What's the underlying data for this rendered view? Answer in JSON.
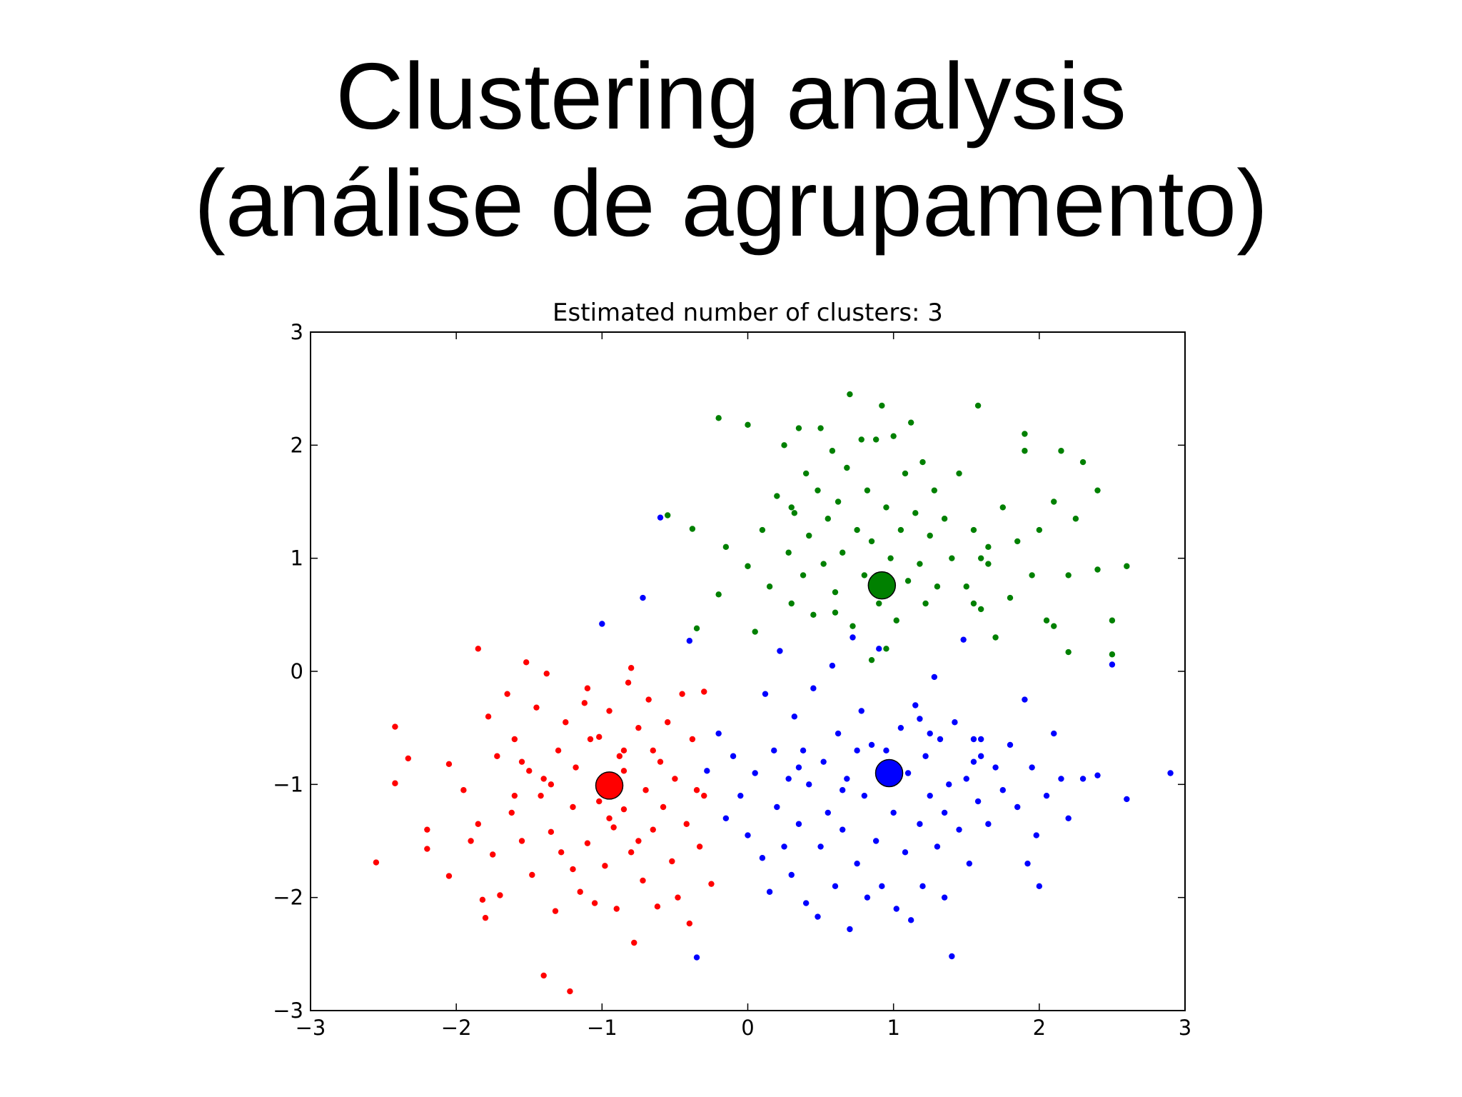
{
  "slide": {
    "title_line1": "Clustering analysis",
    "title_line2": "(análise de agrupamento)"
  },
  "chart_data": {
    "type": "scatter",
    "title": "Estimated number of clusters: 3",
    "xlabel": "",
    "ylabel": "",
    "xlim": [
      -3,
      3
    ],
    "ylim": [
      -3,
      3
    ],
    "xticks": [
      -3,
      -2,
      -1,
      0,
      1,
      2,
      3
    ],
    "yticks": [
      -3,
      -2,
      -1,
      0,
      1,
      2,
      3
    ],
    "xtick_labels": [
      "−3",
      "−2",
      "−1",
      "0",
      "1",
      "2",
      "3"
    ],
    "ytick_labels": [
      "−3",
      "−2",
      "−1",
      "0",
      "1",
      "2",
      "3"
    ],
    "grid": false,
    "series": [
      {
        "color": "#ff0000",
        "center": [
          -0.95,
          -1.01
        ],
        "points": [
          [
            -2.55,
            -1.69
          ],
          [
            -2.42,
            -0.49
          ],
          [
            -2.42,
            -0.99
          ],
          [
            -2.33,
            -0.77
          ],
          [
            -2.2,
            -1.4
          ],
          [
            -2.2,
            -1.57
          ],
          [
            -2.05,
            -0.82
          ],
          [
            -2.05,
            -1.81
          ],
          [
            -1.95,
            -1.05
          ],
          [
            -1.9,
            -1.5
          ],
          [
            -1.85,
            0.2
          ],
          [
            -1.85,
            -1.35
          ],
          [
            -1.82,
            -2.02
          ],
          [
            -1.8,
            -2.18
          ],
          [
            -1.78,
            -0.4
          ],
          [
            -1.75,
            -1.62
          ],
          [
            -1.72,
            -0.75
          ],
          [
            -1.7,
            -1.98
          ],
          [
            -1.65,
            -0.2
          ],
          [
            -1.62,
            -1.25
          ],
          [
            -1.6,
            -0.6
          ],
          [
            -1.55,
            -1.5
          ],
          [
            -1.52,
            0.08
          ],
          [
            -1.5,
            -0.88
          ],
          [
            -1.48,
            -1.8
          ],
          [
            -1.45,
            -0.32
          ],
          [
            -1.42,
            -1.1
          ],
          [
            -1.4,
            -2.69
          ],
          [
            -1.38,
            -0.02
          ],
          [
            -1.35,
            -1.42
          ],
          [
            -1.32,
            -2.12
          ],
          [
            -1.3,
            -0.7
          ],
          [
            -1.28,
            -1.6
          ],
          [
            -1.25,
            -0.45
          ],
          [
            -1.22,
            -2.83
          ],
          [
            -1.2,
            -1.2
          ],
          [
            -1.18,
            -0.85
          ],
          [
            -1.15,
            -1.95
          ],
          [
            -1.12,
            -0.28
          ],
          [
            -1.1,
            -1.52
          ],
          [
            -1.08,
            -0.6
          ],
          [
            -1.05,
            -2.05
          ],
          [
            -1.02,
            -1.15
          ],
          [
            -1.0,
            -0.95
          ],
          [
            -0.98,
            -1.72
          ],
          [
            -0.95,
            -0.35
          ],
          [
            -0.92,
            -1.38
          ],
          [
            -0.9,
            -2.1
          ],
          [
            -0.88,
            -0.75
          ],
          [
            -0.85,
            -1.22
          ],
          [
            -0.82,
            -0.1
          ],
          [
            -0.8,
            -1.6
          ],
          [
            -0.78,
            -2.4
          ],
          [
            -0.75,
            -0.5
          ],
          [
            -0.72,
            -1.85
          ],
          [
            -0.7,
            -1.05
          ],
          [
            -0.68,
            -0.25
          ],
          [
            -0.65,
            -1.4
          ],
          [
            -0.62,
            -2.08
          ],
          [
            -0.6,
            -0.8
          ],
          [
            -0.58,
            -1.2
          ],
          [
            -0.55,
            -0.45
          ],
          [
            -0.52,
            -1.68
          ],
          [
            -0.5,
            -0.95
          ],
          [
            -0.48,
            -2.0
          ],
          [
            -0.45,
            -0.2
          ],
          [
            -0.42,
            -1.35
          ],
          [
            -0.4,
            -2.23
          ],
          [
            -0.38,
            -0.6
          ],
          [
            -0.35,
            -1.05
          ],
          [
            -0.33,
            -1.55
          ],
          [
            -0.3,
            -0.18
          ],
          [
            -0.25,
            -1.88
          ],
          [
            -0.3,
            -1.1
          ],
          [
            -0.85,
            -0.7
          ],
          [
            -1.02,
            -0.58
          ],
          [
            -1.4,
            -0.95
          ],
          [
            -1.6,
            -1.1
          ],
          [
            -0.8,
            0.03
          ],
          [
            -0.85,
            -0.88
          ],
          [
            -0.65,
            -0.7
          ],
          [
            -1.2,
            -1.75
          ],
          [
            -1.1,
            -0.15
          ],
          [
            -1.55,
            -0.8
          ],
          [
            -0.95,
            -1.3
          ],
          [
            -1.35,
            -1.0
          ],
          [
            -0.75,
            -1.5
          ]
        ]
      },
      {
        "color": "#0000ff",
        "center": [
          0.97,
          -0.9
        ],
        "points": [
          [
            -0.6,
            1.36
          ],
          [
            -0.72,
            0.65
          ],
          [
            -1.0,
            0.42
          ],
          [
            -0.4,
            0.27
          ],
          [
            -0.35,
            -2.53
          ],
          [
            -0.28,
            -0.88
          ],
          [
            -0.2,
            -0.55
          ],
          [
            -0.15,
            -1.3
          ],
          [
            -0.1,
            -0.75
          ],
          [
            -0.05,
            -1.1
          ],
          [
            0.0,
            -1.45
          ],
          [
            0.05,
            -0.9
          ],
          [
            0.1,
            -1.65
          ],
          [
            0.12,
            -0.2
          ],
          [
            0.15,
            -1.95
          ],
          [
            0.18,
            -0.7
          ],
          [
            0.2,
            -1.2
          ],
          [
            0.22,
            0.18
          ],
          [
            0.25,
            -1.55
          ],
          [
            0.28,
            -0.95
          ],
          [
            0.3,
            -1.8
          ],
          [
            0.32,
            -0.4
          ],
          [
            0.35,
            -1.35
          ],
          [
            0.38,
            -0.7
          ],
          [
            0.4,
            -2.05
          ],
          [
            0.42,
            -1.0
          ],
          [
            0.45,
            -0.15
          ],
          [
            0.48,
            -2.17
          ],
          [
            0.5,
            -1.55
          ],
          [
            0.52,
            -0.8
          ],
          [
            0.55,
            -1.25
          ],
          [
            0.58,
            0.05
          ],
          [
            0.6,
            -1.9
          ],
          [
            0.62,
            -0.55
          ],
          [
            0.65,
            -1.4
          ],
          [
            0.68,
            -0.95
          ],
          [
            0.7,
            -2.28
          ],
          [
            0.72,
            0.3
          ],
          [
            0.75,
            -1.7
          ],
          [
            0.78,
            -0.35
          ],
          [
            0.8,
            -1.1
          ],
          [
            0.82,
            -2.0
          ],
          [
            0.85,
            -0.65
          ],
          [
            0.88,
            -1.5
          ],
          [
            0.9,
            0.2
          ],
          [
            0.92,
            -1.9
          ],
          [
            0.95,
            -0.7
          ],
          [
            1.0,
            -1.25
          ],
          [
            1.02,
            -2.1
          ],
          [
            1.05,
            -0.5
          ],
          [
            1.08,
            -1.6
          ],
          [
            1.1,
            -0.9
          ],
          [
            1.12,
            -2.2
          ],
          [
            1.15,
            -0.3
          ],
          [
            1.18,
            -1.35
          ],
          [
            1.2,
            -1.9
          ],
          [
            1.22,
            -0.75
          ],
          [
            1.25,
            -1.1
          ],
          [
            1.28,
            -0.05
          ],
          [
            1.3,
            -1.55
          ],
          [
            1.32,
            -0.6
          ],
          [
            1.35,
            -2.0
          ],
          [
            1.38,
            -1.0
          ],
          [
            1.4,
            -2.52
          ],
          [
            1.42,
            -0.45
          ],
          [
            1.45,
            -1.4
          ],
          [
            1.48,
            0.28
          ],
          [
            1.5,
            -0.95
          ],
          [
            1.52,
            -1.7
          ],
          [
            1.55,
            -0.6
          ],
          [
            1.58,
            -1.15
          ],
          [
            1.6,
            -0.75
          ],
          [
            1.65,
            -1.35
          ],
          [
            1.7,
            -0.85
          ],
          [
            1.75,
            -1.05
          ],
          [
            1.8,
            -0.65
          ],
          [
            1.85,
            -1.2
          ],
          [
            1.9,
            -0.25
          ],
          [
            1.92,
            -1.7
          ],
          [
            1.95,
            -0.85
          ],
          [
            1.98,
            -1.45
          ],
          [
            2.0,
            -1.9
          ],
          [
            2.05,
            -1.1
          ],
          [
            2.1,
            -0.55
          ],
          [
            2.15,
            -0.95
          ],
          [
            2.2,
            -1.3
          ],
          [
            2.3,
            -0.95
          ],
          [
            2.4,
            -0.92
          ],
          [
            2.5,
            0.06
          ],
          [
            2.6,
            -1.13
          ],
          [
            2.9,
            -0.9
          ],
          [
            1.18,
            -0.42
          ],
          [
            0.95,
            -0.95
          ],
          [
            1.25,
            -0.55
          ],
          [
            0.75,
            -0.7
          ],
          [
            1.55,
            -0.8
          ],
          [
            1.6,
            -0.6
          ],
          [
            0.35,
            -0.85
          ],
          [
            0.65,
            -1.05
          ],
          [
            1.35,
            -1.25
          ]
        ]
      },
      {
        "color": "#008000",
        "center": [
          0.92,
          0.76
        ],
        "points": [
          [
            -0.55,
            1.38
          ],
          [
            -0.38,
            1.26
          ],
          [
            -0.35,
            0.38
          ],
          [
            -0.2,
            2.24
          ],
          [
            -0.2,
            0.68
          ],
          [
            -0.15,
            1.1
          ],
          [
            0.0,
            2.18
          ],
          [
            0.0,
            0.93
          ],
          [
            0.05,
            0.35
          ],
          [
            0.1,
            1.25
          ],
          [
            0.15,
            0.75
          ],
          [
            0.2,
            1.55
          ],
          [
            0.25,
            2.0
          ],
          [
            0.28,
            1.05
          ],
          [
            0.3,
            0.6
          ],
          [
            0.32,
            1.4
          ],
          [
            0.35,
            2.15
          ],
          [
            0.38,
            0.85
          ],
          [
            0.4,
            1.75
          ],
          [
            0.42,
            1.2
          ],
          [
            0.45,
            0.5
          ],
          [
            0.48,
            1.6
          ],
          [
            0.5,
            2.15
          ],
          [
            0.52,
            0.95
          ],
          [
            0.55,
            1.35
          ],
          [
            0.58,
            1.95
          ],
          [
            0.6,
            0.7
          ],
          [
            0.62,
            1.5
          ],
          [
            0.65,
            1.05
          ],
          [
            0.68,
            1.8
          ],
          [
            0.7,
            2.45
          ],
          [
            0.72,
            0.4
          ],
          [
            0.75,
            1.25
          ],
          [
            0.78,
            2.05
          ],
          [
            0.8,
            0.85
          ],
          [
            0.82,
            1.6
          ],
          [
            0.85,
            1.15
          ],
          [
            0.88,
            2.05
          ],
          [
            0.9,
            0.6
          ],
          [
            0.92,
            2.35
          ],
          [
            0.95,
            1.45
          ],
          [
            0.98,
            1.0
          ],
          [
            1.0,
            2.08
          ],
          [
            1.02,
            0.45
          ],
          [
            1.05,
            1.25
          ],
          [
            1.08,
            1.75
          ],
          [
            1.1,
            0.8
          ],
          [
            1.12,
            2.2
          ],
          [
            1.15,
            1.4
          ],
          [
            1.18,
            0.95
          ],
          [
            1.2,
            1.85
          ],
          [
            1.22,
            0.6
          ],
          [
            1.25,
            1.2
          ],
          [
            1.28,
            1.6
          ],
          [
            1.3,
            0.75
          ],
          [
            1.35,
            1.35
          ],
          [
            1.4,
            1.0
          ],
          [
            1.45,
            1.75
          ],
          [
            1.5,
            0.75
          ],
          [
            1.55,
            1.25
          ],
          [
            1.58,
            2.35
          ],
          [
            1.6,
            0.55
          ],
          [
            1.65,
            1.1
          ],
          [
            1.7,
            0.3
          ],
          [
            1.75,
            1.45
          ],
          [
            1.8,
            0.65
          ],
          [
            1.85,
            1.15
          ],
          [
            1.9,
            2.1
          ],
          [
            1.95,
            0.85
          ],
          [
            2.0,
            1.25
          ],
          [
            2.05,
            0.45
          ],
          [
            2.1,
            1.5
          ],
          [
            2.15,
            1.95
          ],
          [
            2.2,
            0.85
          ],
          [
            2.25,
            1.35
          ],
          [
            2.3,
            1.85
          ],
          [
            2.4,
            1.6
          ],
          [
            2.4,
            0.9
          ],
          [
            2.5,
            0.45
          ],
          [
            2.5,
            0.15
          ],
          [
            2.6,
            0.93
          ],
          [
            2.2,
            0.17
          ],
          [
            2.1,
            0.4
          ],
          [
            1.9,
            1.95
          ],
          [
            1.6,
            1.0
          ],
          [
            1.65,
            0.95
          ],
          [
            1.55,
            0.6
          ],
          [
            0.95,
            0.2
          ],
          [
            0.85,
            0.1
          ],
          [
            0.6,
            0.52
          ],
          [
            0.3,
            1.45
          ],
          [
            0.9,
            0.85
          ]
        ]
      }
    ]
  }
}
